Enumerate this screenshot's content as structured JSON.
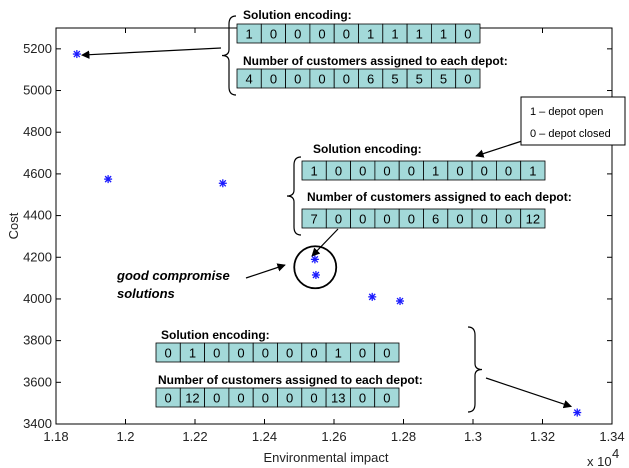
{
  "chart_data": {
    "type": "scatter",
    "xlabel": "Environmental impact",
    "ylabel": "Cost",
    "x_exponent_label": "x 10",
    "x_exponent_power": "4",
    "xlim": [
      11800,
      13400
    ],
    "ylim": [
      3400,
      5300
    ],
    "xticks": [
      11800,
      12000,
      12200,
      12400,
      12600,
      12800,
      13000,
      13200,
      13400
    ],
    "xtick_labels": [
      "1.18",
      "1.2",
      "1.22",
      "1.24",
      "1.26",
      "1.28",
      "1.3",
      "1.32",
      "1.34"
    ],
    "yticks": [
      3400,
      3600,
      3800,
      4000,
      4200,
      4400,
      4600,
      4800,
      5000,
      5200
    ],
    "ytick_labels": [
      "3400",
      "3600",
      "3800",
      "4000",
      "4200",
      "4400",
      "4600",
      "4800",
      "5000",
      "5200"
    ],
    "marker_color": "#1a1aff",
    "points": [
      {
        "x": 11860,
        "y": 5175
      },
      {
        "x": 11950,
        "y": 4575
      },
      {
        "x": 12280,
        "y": 4555
      },
      {
        "x": 12545,
        "y": 4190
      },
      {
        "x": 12548,
        "y": 4115
      },
      {
        "x": 12710,
        "y": 4010
      },
      {
        "x": 12790,
        "y": 3990
      },
      {
        "x": 13300,
        "y": 3455
      }
    ]
  },
  "annotations": {
    "cell_color": "#a3d9d9",
    "boxes": [
      {
        "encoding_title": "Solution encoding:",
        "encoding": [
          "1",
          "0",
          "0",
          "0",
          "0",
          "1",
          "1",
          "1",
          "1",
          "0"
        ],
        "customers_title": "Number of customers assigned  to each depot:",
        "customers": [
          "4",
          "0",
          "0",
          "0",
          "0",
          "6",
          "5",
          "5",
          "5",
          "0"
        ]
      },
      {
        "encoding_title": "Solution encoding:",
        "encoding": [
          "1",
          "0",
          "0",
          "0",
          "0",
          "1",
          "0",
          "0",
          "0",
          "1"
        ],
        "customers_title": "Number of customers assigned  to each depot:",
        "customers": [
          "7",
          "0",
          "0",
          "0",
          "0",
          "6",
          "0",
          "0",
          "0",
          "12"
        ]
      },
      {
        "encoding_title": "Solution encoding:",
        "encoding": [
          "0",
          "1",
          "0",
          "0",
          "0",
          "0",
          "0",
          "1",
          "0",
          "0"
        ],
        "customers_title": "Number of customers assigned  to each depot:",
        "customers": [
          "0",
          "12",
          "0",
          "0",
          "0",
          "0",
          "0",
          "13",
          "0",
          "0"
        ]
      }
    ],
    "legend": [
      "1 – depot open",
      "0 – depot closed"
    ],
    "compromise_note": [
      "good compromise",
      "solutions"
    ]
  }
}
